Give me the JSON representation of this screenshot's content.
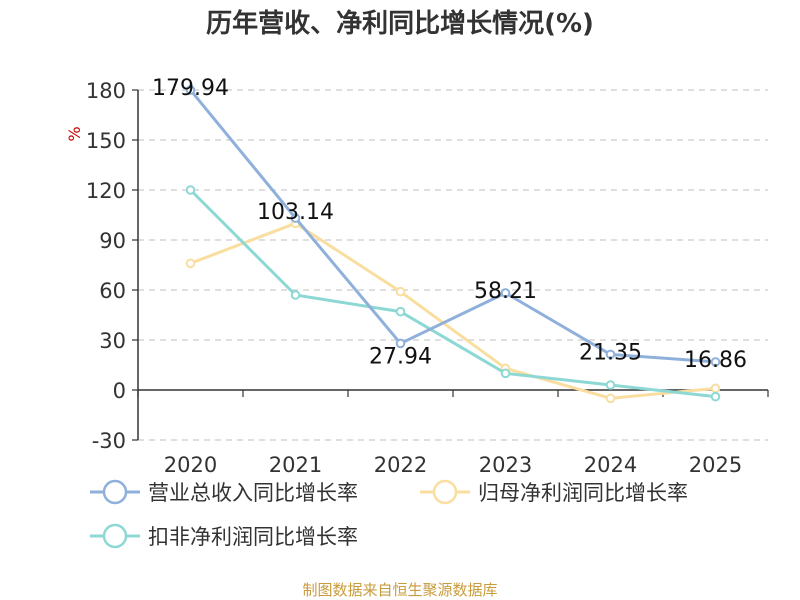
{
  "chart_data": {
    "type": "line",
    "title": "历年营收、净利同比增长情况(%)",
    "ylabel": "%",
    "categories": [
      "2020",
      "2021",
      "2022",
      "2023",
      "2024",
      "2025"
    ],
    "ylim": [
      -30,
      180
    ],
    "yticks": [
      180,
      150,
      120,
      90,
      60,
      30,
      0,
      -30
    ],
    "grid": true,
    "legend_position": "bottom-left",
    "series": [
      {
        "name": "营业总收入同比增长率",
        "color": "#8fb0db",
        "values": [
          179.94,
          103.14,
          27.94,
          58.21,
          21.35,
          16.86
        ],
        "labels": [
          "179.94",
          "103.14",
          "27.94",
          "58.21",
          "21.35",
          "16.86"
        ]
      },
      {
        "name": "归母净利润同比增长率",
        "color": "#f9dea0",
        "values": [
          76,
          100,
          59,
          13,
          -5,
          1
        ]
      },
      {
        "name": "扣非净利润同比增长率",
        "color": "#8dd8d5",
        "values": [
          120,
          57,
          47,
          10,
          3,
          -4
        ]
      }
    ]
  },
  "source_text": "制图数据来自恒生聚源数据库"
}
